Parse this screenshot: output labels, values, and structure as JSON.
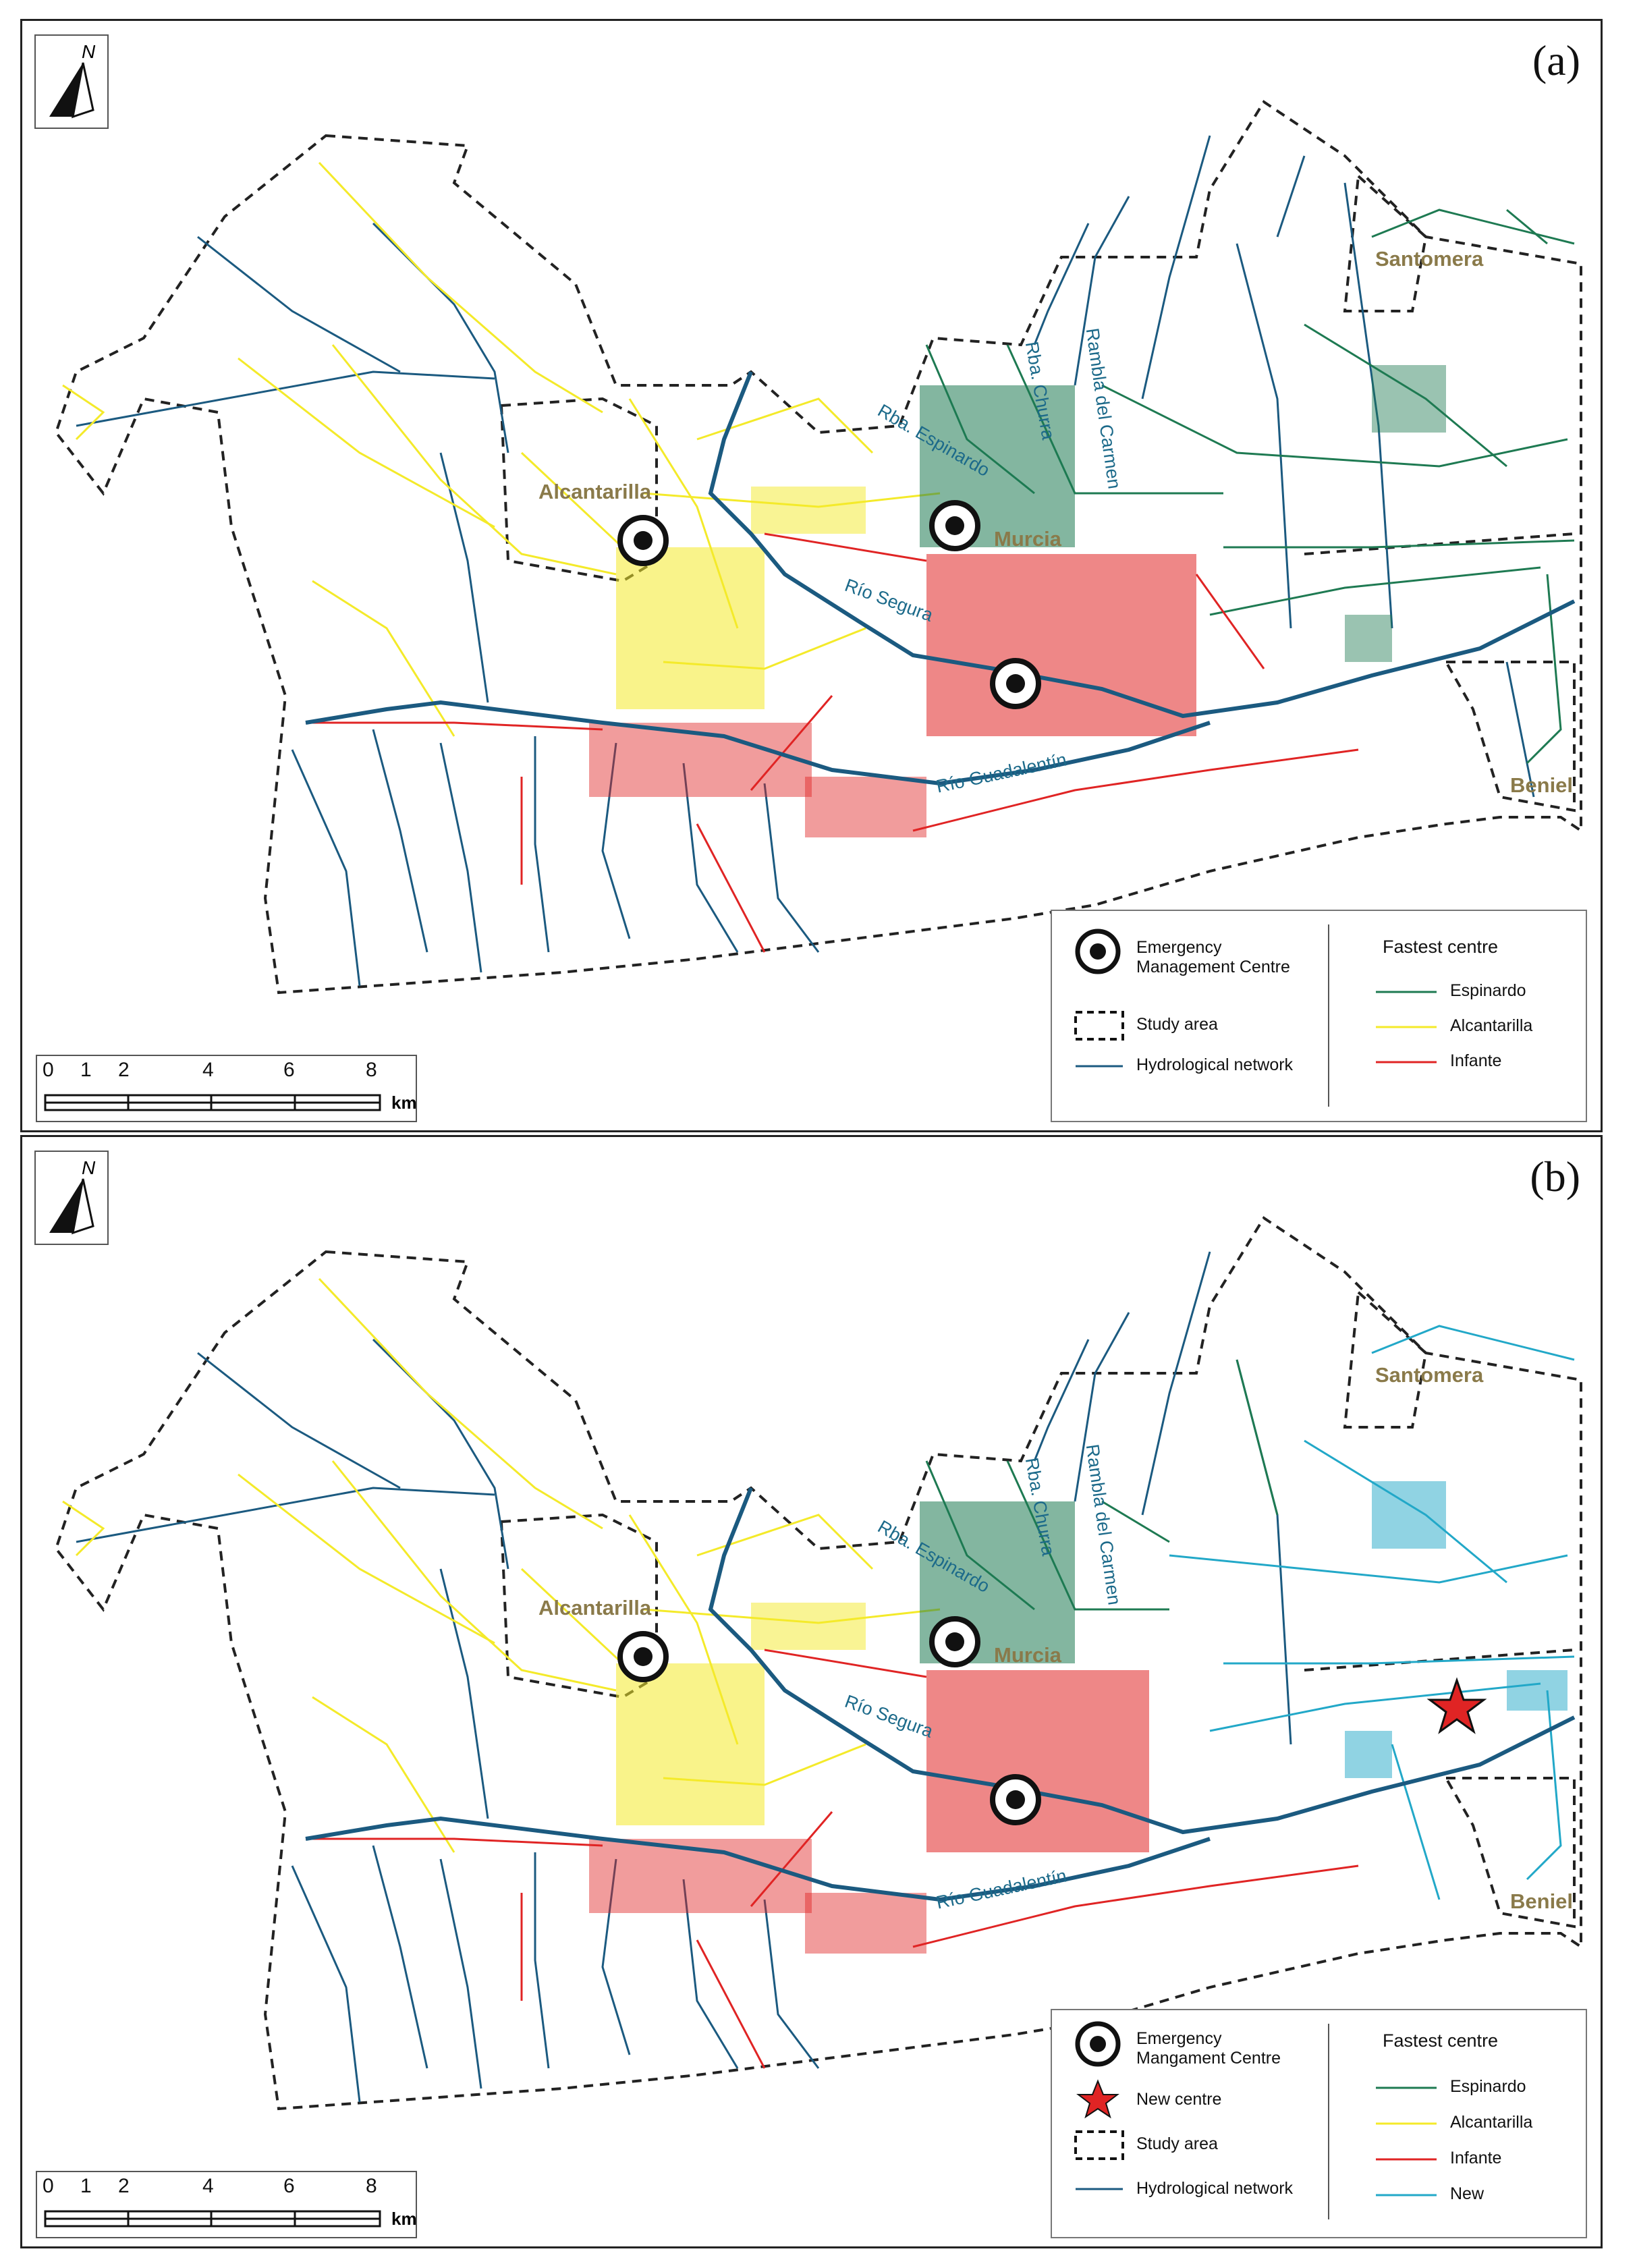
{
  "panels": [
    {
      "id": "a",
      "label": "(a)",
      "places": [
        "Alcantarilla",
        "Murcia",
        "Santomera",
        "Beniel"
      ],
      "rivers": [
        "Río Segura",
        "Río Guadalentín",
        "Rba. Espinardo",
        "Rba. Churra",
        "Rambla del Carmen"
      ],
      "legend": {
        "emc": "Emergency Management Centre",
        "study_area": "Study area",
        "hydro": "Hydrological network",
        "heading": "Fastest centre",
        "classes": [
          {
            "name": "Espinardo",
            "color": "#1e7a52"
          },
          {
            "name": "Alcantarilla",
            "color": "#f4ea2a"
          },
          {
            "name": "Infante",
            "color": "#e02424"
          }
        ]
      }
    },
    {
      "id": "b",
      "label": "(b)",
      "places": [
        "Alcantarilla",
        "Murcia",
        "Santomera",
        "Beniel"
      ],
      "rivers": [
        "Río Segura",
        "Río Guadalentín",
        "Rba. Espinardo",
        "Rba. Churra",
        "Rambla del Carmen"
      ],
      "legend": {
        "emc": "Emergency Mangament Centre",
        "new_centre": "New centre",
        "study_area": "Study area",
        "hydro": "Hydrological network",
        "heading": "Fastest centre",
        "classes": [
          {
            "name": "Espinardo",
            "color": "#1e7a52"
          },
          {
            "name": "Alcantarilla",
            "color": "#f4ea2a"
          },
          {
            "name": "Infante",
            "color": "#e02424"
          },
          {
            "name": "New",
            "color": "#22a8c8"
          }
        ]
      }
    }
  ],
  "scale": {
    "ticks": [
      "0",
      "1",
      "2",
      "4",
      "6",
      "8"
    ],
    "unit": "km"
  },
  "north_label": "N",
  "colors": {
    "hydro": "#1b5a80",
    "river_main": "#1b5a80",
    "boundary": "#222222"
  }
}
